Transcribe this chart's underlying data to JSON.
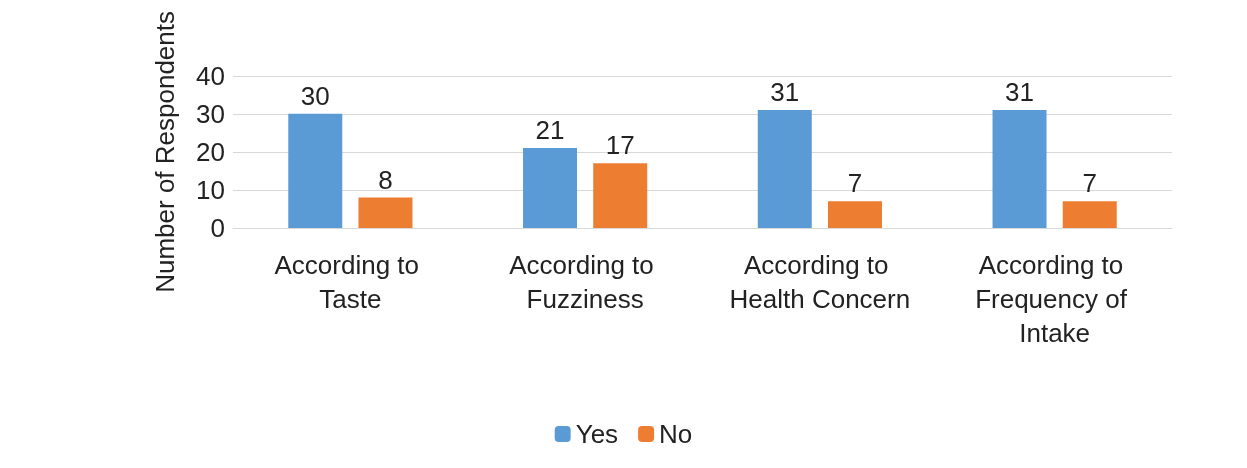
{
  "chart_data": {
    "type": "bar",
    "ylabel": "Number of Respondents",
    "categories": [
      "According to Taste",
      "According to Fuzziness",
      "According to Health Concern",
      "According to Frequency of Intake"
    ],
    "series": [
      {
        "name": "Yes",
        "color": "#5b9bd5",
        "values": [
          30,
          21,
          31,
          31
        ]
      },
      {
        "name": "No",
        "color": "#ed7d31",
        "values": [
          8,
          17,
          7,
          7
        ]
      }
    ],
    "ylim": [
      0,
      40
    ],
    "yticks": [
      0,
      10,
      20,
      30,
      40
    ],
    "grid": "y",
    "legend": "bottom",
    "data_labels": true
  }
}
